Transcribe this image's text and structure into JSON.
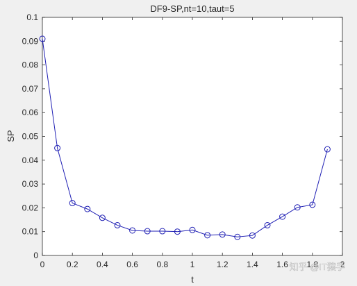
{
  "chart_data": {
    "type": "line",
    "title": "DF9-SP,nt=10,taut=5",
    "xlabel": "t",
    "ylabel": "SP",
    "xlim": [
      0,
      2
    ],
    "ylim": [
      0,
      0.1
    ],
    "xticks": [
      "0",
      "0.2",
      "0.4",
      "0.6",
      "0.8",
      "1",
      "1.2",
      "1.4",
      "1.6",
      "1.8",
      "2"
    ],
    "yticks": [
      "0",
      "0.01",
      "0.02",
      "0.03",
      "0.04",
      "0.05",
      "0.06",
      "0.07",
      "0.08",
      "0.09",
      "0.1"
    ],
    "grid": false,
    "series": [
      {
        "color": "#1f1fb4",
        "marker": "circle",
        "x": [
          0,
          0.1,
          0.2,
          0.3,
          0.4,
          0.5,
          0.6,
          0.7,
          0.8,
          0.9,
          1.0,
          1.1,
          1.2,
          1.3,
          1.4,
          1.5,
          1.6,
          1.7,
          1.8,
          1.9
        ],
        "y": [
          0.091,
          0.0451,
          0.022,
          0.0195,
          0.0158,
          0.0127,
          0.0105,
          0.0102,
          0.0102,
          0.01,
          0.0107,
          0.0085,
          0.0088,
          0.0078,
          0.0084,
          0.0127,
          0.0163,
          0.0202,
          0.0213,
          0.0446
        ]
      }
    ]
  },
  "watermark": "知乎 @IT猿手"
}
